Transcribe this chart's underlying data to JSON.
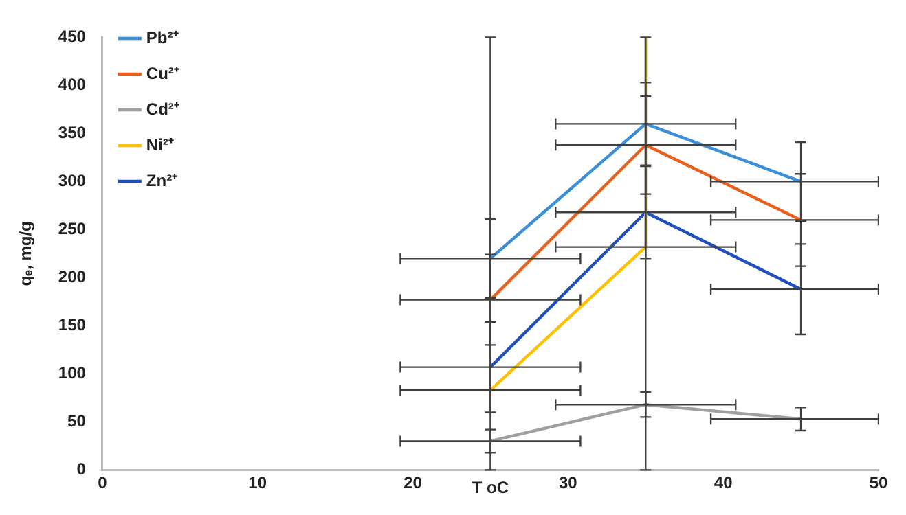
{
  "chart_data": {
    "type": "line",
    "xlabel": "T oC",
    "ylabel": "qₑ, mg/g",
    "xlim": [
      0,
      50
    ],
    "xticks": [
      0,
      10,
      20,
      30,
      40,
      50
    ],
    "ylim": [
      0,
      450
    ],
    "yticks": [
      0,
      50,
      100,
      150,
      200,
      250,
      300,
      350,
      400,
      450
    ],
    "grid": false,
    "legend": "top left",
    "marker": "none",
    "line_style": "solid",
    "series": [
      {
        "name": "Pb²⁺",
        "color": "#3a8fd8",
        "x": [
          25,
          35,
          45
        ],
        "values": [
          220,
          360,
          300
        ],
        "errors": [
          41,
          43,
          41
        ],
        "xerrors": [
          5.8,
          5.8,
          [
            39.2,
            50
          ]
        ]
      },
      {
        "name": "Cu²⁺",
        "color": "#e8601c",
        "x": [
          25,
          35,
          45
        ],
        "values": [
          177,
          338,
          260
        ],
        "errors": [
          47,
          51,
          48
        ],
        "xerrors": [
          5.8,
          5.8,
          [
            39.2,
            50
          ]
        ]
      },
      {
        "name": "Cd²⁺",
        "color": "#a0a0a0",
        "x": [
          25,
          35,
          45
        ],
        "values": [
          30,
          68,
          53
        ],
        "errors": [
          12,
          13,
          12
        ],
        "xerrors": [
          5.8,
          5.8,
          [
            39.2,
            50
          ]
        ]
      },
      {
        "name": "Ni²⁺",
        "color": "#ffc000",
        "x": [
          25,
          35,
          35
        ],
        "values": [
          83,
          232,
          450
        ],
        "errors": [
          [
            0,
            450
          ],
          [
            0,
            450
          ],
          null
        ],
        "xerrors": [
          5.8,
          5.8,
          null
        ]
      },
      {
        "name": "Zn²⁺",
        "color": "#1f4fc0",
        "x": [
          25,
          35,
          45
        ],
        "values": [
          107,
          268,
          188
        ],
        "errors": [
          47,
          48,
          47
        ],
        "xerrors": [
          5.8,
          5.8,
          [
            39.2,
            50
          ]
        ]
      }
    ]
  }
}
